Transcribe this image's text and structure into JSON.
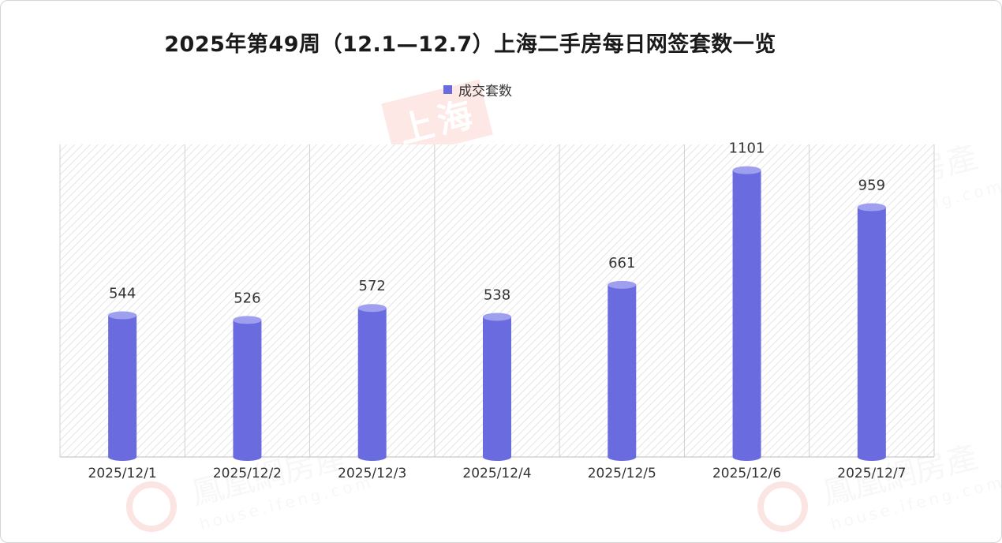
{
  "title": "2025年第49周（12.1—12.7）上海二手房每日网签套数一览",
  "legend": {
    "label": "成交套数"
  },
  "colors": {
    "bar": "#6b6be0",
    "bar_top": "#9f9ff0",
    "label": "#333333"
  },
  "watermark": {
    "brand": "鳳凰網房產",
    "url": "house.ifeng.com",
    "stamp": "上海"
  },
  "chart_data": {
    "type": "bar",
    "categories": [
      "2025/12/1",
      "2025/12/2",
      "2025/12/3",
      "2025/12/4",
      "2025/12/5",
      "2025/12/6",
      "2025/12/7"
    ],
    "series": [
      {
        "name": "成交套数",
        "values": [
          544,
          526,
          572,
          538,
          661,
          1101,
          959
        ]
      }
    ],
    "ylim": [
      0,
      1200
    ],
    "grid": false,
    "legend_position": "top-center",
    "data_labels": true
  }
}
